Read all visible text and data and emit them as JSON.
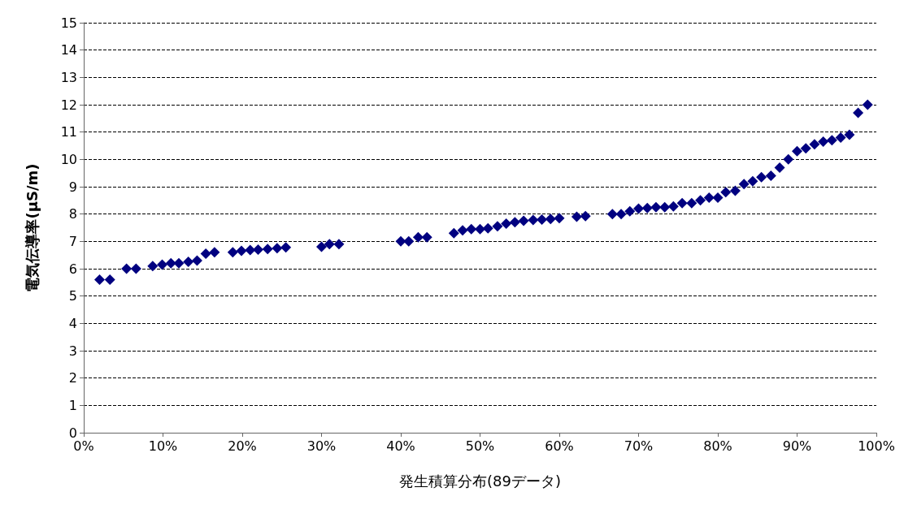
{
  "chart_data": {
    "type": "scatter",
    "xlabel": "発生積算分布(89データ)",
    "ylabel": "電気伝導率(μS/m)",
    "series": [
      {
        "color": "#000080",
        "x": [
          2,
          3.3,
          5.4,
          6.6,
          8.7,
          9.9,
          11,
          12,
          13.2,
          14.3,
          15.4,
          16.5,
          18.8,
          19.9,
          21,
          22,
          23.2,
          24.4,
          25.5,
          30,
          31,
          32.2,
          40,
          41,
          42.2,
          43.3,
          46.7,
          47.8,
          48.9,
          50,
          51,
          52.2,
          53.3,
          54.4,
          55.5,
          56.7,
          57.8,
          58.9,
          60,
          62.2,
          63.3,
          66.7,
          67.8,
          68.9,
          70,
          71.1,
          72.2,
          73.3,
          74.4,
          75.5,
          76.7,
          77.8,
          78.9,
          80,
          81,
          82.2,
          83.3,
          84.4,
          85.5,
          86.7,
          87.8,
          88.9,
          90,
          91.1,
          92.2,
          93.3,
          94.4,
          95.5,
          96.6,
          97.7,
          98.9
        ],
        "values": [
          5.6,
          5.6,
          6.0,
          6.0,
          6.1,
          6.15,
          6.2,
          6.2,
          6.25,
          6.3,
          6.55,
          6.6,
          6.6,
          6.65,
          6.68,
          6.7,
          6.72,
          6.75,
          6.78,
          6.8,
          6.9,
          6.9,
          7.0,
          7.0,
          7.15,
          7.15,
          7.3,
          7.4,
          7.45,
          7.45,
          7.48,
          7.55,
          7.65,
          7.7,
          7.75,
          7.78,
          7.8,
          7.82,
          7.85,
          7.9,
          7.92,
          8.0,
          8.0,
          8.1,
          8.2,
          8.22,
          8.25,
          8.25,
          8.28,
          8.4,
          8.4,
          8.5,
          8.6,
          8.6,
          8.8,
          8.85,
          9.1,
          9.2,
          9.35,
          9.4,
          9.7,
          10.0,
          10.3,
          10.4,
          10.55,
          10.65,
          10.7,
          10.8,
          10.9,
          11.7,
          12.0
        ]
      }
    ],
    "xlim": [
      0,
      100
    ],
    "xticks": [
      {
        "value": 0,
        "label": "0%"
      },
      {
        "value": 10,
        "label": "10%"
      },
      {
        "value": 20,
        "label": "20%"
      },
      {
        "value": 30,
        "label": "30%"
      },
      {
        "value": 40,
        "label": "40%"
      },
      {
        "value": 50,
        "label": "50%"
      },
      {
        "value": 60,
        "label": "60%"
      },
      {
        "value": 70,
        "label": "70%"
      },
      {
        "value": 80,
        "label": "80%"
      },
      {
        "value": 90,
        "label": "90%"
      },
      {
        "value": 100,
        "label": "100%"
      }
    ],
    "ylim": [
      0,
      15
    ],
    "yticks": [
      0,
      1,
      2,
      3,
      4,
      5,
      6,
      7,
      8,
      9,
      10,
      11,
      12,
      13,
      14,
      15
    ],
    "grid": "y",
    "marker": "diamond"
  }
}
